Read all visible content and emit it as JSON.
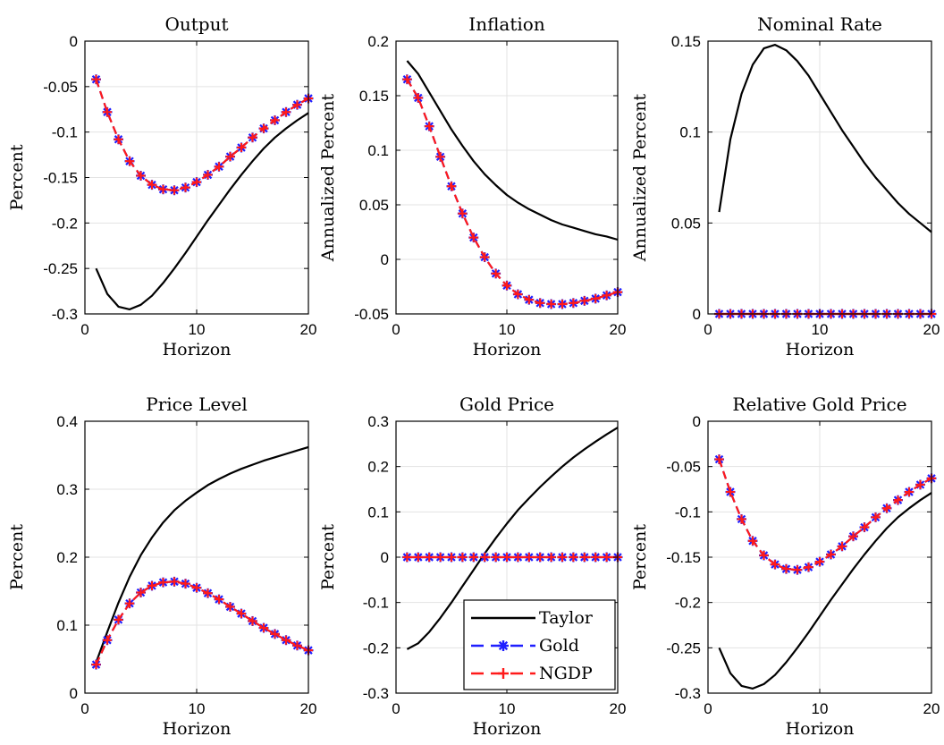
{
  "figure": {
    "legend": {
      "panel_index": 4,
      "placement": "bottom-right",
      "entries": [
        "Taylor",
        "Gold",
        "NGDP"
      ]
    },
    "series_styles": [
      {
        "name": "Taylor",
        "color": "#000000",
        "line": "solid",
        "marker": "none"
      },
      {
        "name": "Gold",
        "color": "#1f1fff",
        "line": "dashed",
        "marker": "asterisk"
      },
      {
        "name": "NGDP",
        "color": "#ff1a1a",
        "line": "dashed",
        "marker": "plus"
      }
    ]
  },
  "chart_data": [
    {
      "type": "line",
      "title": "Output",
      "xlabel": "Horizon",
      "ylabel": "Percent",
      "xlim": [
        0,
        20
      ],
      "ylim": [
        -0.3,
        0
      ],
      "xticks": [
        0,
        10,
        20
      ],
      "yticks": [
        -0.3,
        -0.25,
        -0.2,
        -0.15,
        -0.1,
        -0.05,
        0
      ],
      "yticklabels": [
        "-0.3",
        "-0.25",
        "-0.2",
        "-0.15",
        "-0.1",
        "-0.05",
        "0"
      ],
      "grid": true,
      "x": [
        1,
        2,
        3,
        4,
        5,
        6,
        7,
        8,
        9,
        10,
        11,
        12,
        13,
        14,
        15,
        16,
        17,
        18,
        19,
        20
      ],
      "series": [
        {
          "name": "Taylor",
          "values": [
            -0.25,
            -0.278,
            -0.292,
            -0.295,
            -0.29,
            -0.28,
            -0.266,
            -0.25,
            -0.233,
            -0.215,
            -0.197,
            -0.18,
            -0.163,
            -0.147,
            -0.132,
            -0.118,
            -0.106,
            -0.096,
            -0.087,
            -0.079
          ]
        },
        {
          "name": "Gold",
          "values": [
            -0.042,
            -0.078,
            -0.108,
            -0.132,
            -0.148,
            -0.158,
            -0.163,
            -0.164,
            -0.161,
            -0.155,
            -0.147,
            -0.138,
            -0.127,
            -0.117,
            -0.106,
            -0.096,
            -0.087,
            -0.078,
            -0.07,
            -0.063
          ]
        },
        {
          "name": "NGDP",
          "values": [
            -0.042,
            -0.078,
            -0.108,
            -0.132,
            -0.148,
            -0.158,
            -0.163,
            -0.164,
            -0.161,
            -0.155,
            -0.147,
            -0.138,
            -0.127,
            -0.117,
            -0.106,
            -0.096,
            -0.087,
            -0.078,
            -0.07,
            -0.063
          ]
        }
      ]
    },
    {
      "type": "line",
      "title": "Inflation",
      "xlabel": "Horizon",
      "ylabel": "Annualized Percent",
      "xlim": [
        0,
        20
      ],
      "ylim": [
        -0.05,
        0.2
      ],
      "xticks": [
        0,
        10,
        20
      ],
      "yticks": [
        -0.05,
        0,
        0.05,
        0.1,
        0.15,
        0.2
      ],
      "yticklabels": [
        "-0.05",
        "0",
        "0.05",
        "0.1",
        "0.15",
        "0.2"
      ],
      "grid": true,
      "x": [
        1,
        2,
        3,
        4,
        5,
        6,
        7,
        8,
        9,
        10,
        11,
        12,
        13,
        14,
        15,
        16,
        17,
        18,
        19,
        20
      ],
      "series": [
        {
          "name": "Taylor",
          "values": [
            0.182,
            0.17,
            0.153,
            0.136,
            0.119,
            0.104,
            0.09,
            0.078,
            0.068,
            0.059,
            0.052,
            0.046,
            0.041,
            0.036,
            0.032,
            0.029,
            0.026,
            0.023,
            0.021,
            0.018
          ]
        },
        {
          "name": "Gold",
          "values": [
            0.165,
            0.148,
            0.122,
            0.094,
            0.067,
            0.042,
            0.02,
            0.002,
            -0.013,
            -0.024,
            -0.032,
            -0.037,
            -0.04,
            -0.041,
            -0.041,
            -0.04,
            -0.038,
            -0.036,
            -0.033,
            -0.03
          ]
        },
        {
          "name": "NGDP",
          "values": [
            0.165,
            0.148,
            0.122,
            0.094,
            0.067,
            0.042,
            0.02,
            0.002,
            -0.013,
            -0.024,
            -0.032,
            -0.037,
            -0.04,
            -0.041,
            -0.041,
            -0.04,
            -0.038,
            -0.036,
            -0.033,
            -0.03
          ]
        }
      ]
    },
    {
      "type": "line",
      "title": "Nominal Rate",
      "xlabel": "Horizon",
      "ylabel": "Annualized Percent",
      "xlim": [
        0,
        20
      ],
      "ylim": [
        0,
        0.15
      ],
      "xticks": [
        0,
        10,
        20
      ],
      "yticks": [
        0,
        0.05,
        0.1,
        0.15
      ],
      "yticklabels": [
        "0",
        "0.05",
        "0.1",
        "0.15"
      ],
      "grid": true,
      "x": [
        1,
        2,
        3,
        4,
        5,
        6,
        7,
        8,
        9,
        10,
        11,
        12,
        13,
        14,
        15,
        16,
        17,
        18,
        19,
        20
      ],
      "series": [
        {
          "name": "Taylor",
          "values": [
            0.056,
            0.096,
            0.121,
            0.137,
            0.146,
            0.148,
            0.145,
            0.139,
            0.131,
            0.121,
            0.111,
            0.101,
            0.092,
            0.083,
            0.075,
            0.068,
            0.061,
            0.055,
            0.05,
            0.045
          ]
        },
        {
          "name": "Gold",
          "values": [
            0,
            0,
            0,
            0,
            0,
            0,
            0,
            0,
            0,
            0,
            0,
            0,
            0,
            0,
            0,
            0,
            0,
            0,
            0,
            0
          ]
        },
        {
          "name": "NGDP",
          "values": [
            0,
            0,
            0,
            0,
            0,
            0,
            0,
            0,
            0,
            0,
            0,
            0,
            0,
            0,
            0,
            0,
            0,
            0,
            0,
            0
          ]
        }
      ]
    },
    {
      "type": "line",
      "title": "Price Level",
      "xlabel": "Horizon",
      "ylabel": "Percent",
      "xlim": [
        0,
        20
      ],
      "ylim": [
        0,
        0.4
      ],
      "xticks": [
        0,
        10,
        20
      ],
      "yticks": [
        0,
        0.1,
        0.2,
        0.3,
        0.4
      ],
      "yticklabels": [
        "0",
        "0.1",
        "0.2",
        "0.3",
        "0.4"
      ],
      "grid": true,
      "x": [
        1,
        2,
        3,
        4,
        5,
        6,
        7,
        8,
        9,
        10,
        11,
        12,
        13,
        14,
        15,
        16,
        17,
        18,
        19,
        20
      ],
      "series": [
        {
          "name": "Taylor",
          "values": [
            0.045,
            0.09,
            0.133,
            0.171,
            0.203,
            0.229,
            0.251,
            0.269,
            0.283,
            0.295,
            0.306,
            0.315,
            0.323,
            0.33,
            0.336,
            0.342,
            0.347,
            0.352,
            0.357,
            0.362
          ]
        },
        {
          "name": "Gold",
          "values": [
            0.042,
            0.078,
            0.108,
            0.132,
            0.148,
            0.158,
            0.163,
            0.164,
            0.161,
            0.155,
            0.147,
            0.138,
            0.127,
            0.117,
            0.106,
            0.096,
            0.087,
            0.078,
            0.07,
            0.063
          ]
        },
        {
          "name": "NGDP",
          "values": [
            0.042,
            0.078,
            0.108,
            0.132,
            0.148,
            0.158,
            0.163,
            0.164,
            0.161,
            0.155,
            0.147,
            0.138,
            0.127,
            0.117,
            0.106,
            0.096,
            0.087,
            0.078,
            0.07,
            0.063
          ]
        }
      ]
    },
    {
      "type": "line",
      "title": "Gold Price",
      "xlabel": "Horizon",
      "ylabel": "Percent",
      "xlim": [
        0,
        20
      ],
      "ylim": [
        -0.3,
        0.3
      ],
      "xticks": [
        0,
        10,
        20
      ],
      "yticks": [
        -0.3,
        -0.2,
        -0.1,
        0,
        0.1,
        0.2,
        0.3
      ],
      "yticklabels": [
        "-0.3",
        "-0.2",
        "-0.1",
        "0",
        "0.1",
        "0.2",
        "0.3"
      ],
      "grid": true,
      "legend": "bottom-right",
      "x": [
        1,
        2,
        3,
        4,
        5,
        6,
        7,
        8,
        9,
        10,
        11,
        12,
        13,
        14,
        15,
        16,
        17,
        18,
        19,
        20
      ],
      "series": [
        {
          "name": "Taylor",
          "values": [
            -0.203,
            -0.19,
            -0.165,
            -0.134,
            -0.1,
            -0.064,
            -0.028,
            0.008,
            0.042,
            0.074,
            0.104,
            0.13,
            0.155,
            0.178,
            0.2,
            0.22,
            0.238,
            0.255,
            0.271,
            0.286
          ]
        },
        {
          "name": "Gold",
          "values": [
            0,
            0,
            0,
            0,
            0,
            0,
            0,
            0,
            0,
            0,
            0,
            0,
            0,
            0,
            0,
            0,
            0,
            0,
            0,
            0
          ]
        },
        {
          "name": "NGDP",
          "values": [
            0,
            0,
            0,
            0,
            0,
            0,
            0,
            0,
            0,
            0,
            0,
            0,
            0,
            0,
            0,
            0,
            0,
            0,
            0,
            0
          ]
        }
      ]
    },
    {
      "type": "line",
      "title": "Relative Gold Price",
      "xlabel": "Horizon",
      "ylabel": "Percent",
      "xlim": [
        0,
        20
      ],
      "ylim": [
        -0.3,
        0
      ],
      "xticks": [
        0,
        10,
        20
      ],
      "yticks": [
        -0.3,
        -0.25,
        -0.2,
        -0.15,
        -0.1,
        -0.05,
        0
      ],
      "yticklabels": [
        "-0.3",
        "-0.25",
        "-0.2",
        "-0.15",
        "-0.1",
        "-0.05",
        "0"
      ],
      "grid": true,
      "x": [
        1,
        2,
        3,
        4,
        5,
        6,
        7,
        8,
        9,
        10,
        11,
        12,
        13,
        14,
        15,
        16,
        17,
        18,
        19,
        20
      ],
      "series": [
        {
          "name": "Taylor",
          "values": [
            -0.25,
            -0.278,
            -0.292,
            -0.295,
            -0.29,
            -0.28,
            -0.266,
            -0.25,
            -0.233,
            -0.215,
            -0.197,
            -0.18,
            -0.163,
            -0.147,
            -0.132,
            -0.118,
            -0.106,
            -0.096,
            -0.087,
            -0.079
          ]
        },
        {
          "name": "Gold",
          "values": [
            -0.042,
            -0.078,
            -0.108,
            -0.132,
            -0.148,
            -0.158,
            -0.163,
            -0.164,
            -0.161,
            -0.155,
            -0.147,
            -0.138,
            -0.127,
            -0.117,
            -0.106,
            -0.096,
            -0.087,
            -0.078,
            -0.07,
            -0.063
          ]
        },
        {
          "name": "NGDP",
          "values": [
            -0.042,
            -0.078,
            -0.108,
            -0.132,
            -0.148,
            -0.158,
            -0.163,
            -0.164,
            -0.161,
            -0.155,
            -0.147,
            -0.138,
            -0.127,
            -0.117,
            -0.106,
            -0.096,
            -0.087,
            -0.078,
            -0.07,
            -0.063
          ]
        }
      ]
    }
  ]
}
